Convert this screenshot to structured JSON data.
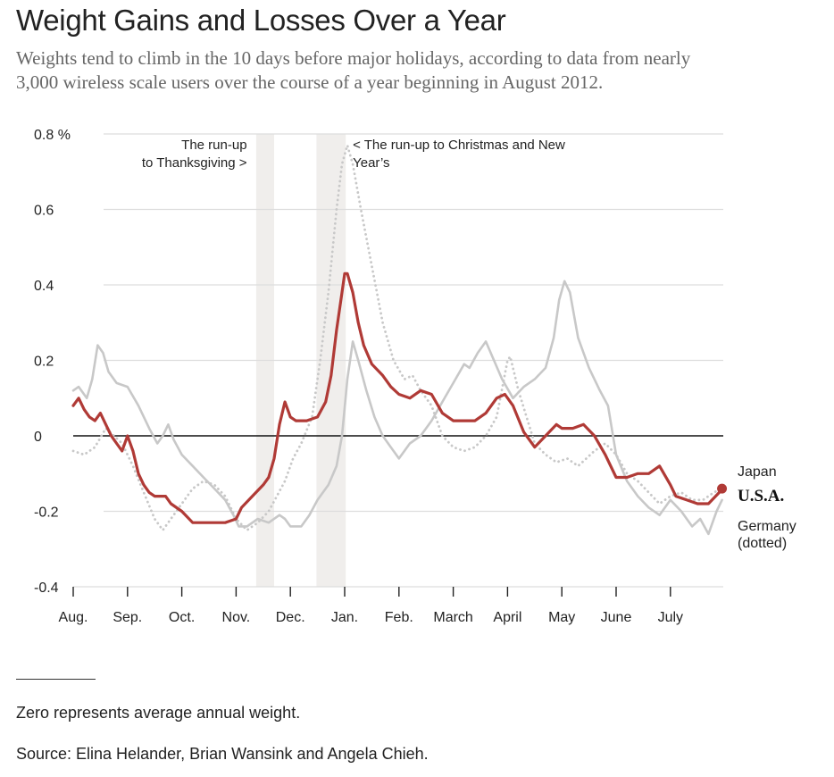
{
  "header": {
    "title": "Weight Gains and Losses Over a Year",
    "subtitle_line1": "Weights tend to climb in the 10 days before major holidays, according to data from nearly",
    "subtitle_line2": "3,000 wireless scale users over the course of a year beginning in August 2012."
  },
  "footer": {
    "note": "Zero represents average annual weight.",
    "source": "Source: Elina Helander, Brian Wansink and Angela Chieh."
  },
  "chart_data": {
    "type": "line",
    "title": "Weight Gains and Losses Over a Year",
    "xlabel": "",
    "ylabel": "",
    "ylim": [
      -0.4,
      0.8
    ],
    "xlim": [
      0,
      12
    ],
    "y_ticks": [
      {
        "value": 0.8,
        "label": "0.8 %"
      },
      {
        "value": 0.6,
        "label": "0.6"
      },
      {
        "value": 0.4,
        "label": "0.4"
      },
      {
        "value": 0.2,
        "label": "0.2"
      },
      {
        "value": 0.0,
        "label": "0"
      },
      {
        "value": -0.2,
        "label": "-0.2"
      },
      {
        "value": -0.4,
        "label": "-0.4"
      }
    ],
    "x_ticks": [
      {
        "value": 0,
        "label": "Aug."
      },
      {
        "value": 1,
        "label": "Sep."
      },
      {
        "value": 2,
        "label": "Oct."
      },
      {
        "value": 3,
        "label": "Nov."
      },
      {
        "value": 4,
        "label": "Dec."
      },
      {
        "value": 5,
        "label": "Jan."
      },
      {
        "value": 6,
        "label": "Feb."
      },
      {
        "value": 7,
        "label": "March"
      },
      {
        "value": 8,
        "label": "April"
      },
      {
        "value": 9,
        "label": "May"
      },
      {
        "value": 10,
        "label": "June"
      },
      {
        "value": 11,
        "label": "July"
      }
    ],
    "bands": [
      {
        "x0": 3.37,
        "x1": 3.7
      },
      {
        "x0": 4.48,
        "x1": 5.02
      }
    ],
    "annotations": [
      {
        "lines": [
          "The run-up",
          "to Thanksgiving >"
        ],
        "x": 3.2,
        "y": 0.76,
        "anchor": "end"
      },
      {
        "lines": [
          "< The run-up to Christmas and New",
          "Year’s"
        ],
        "x": 5.15,
        "y": 0.76,
        "anchor": "start"
      }
    ],
    "series": [
      {
        "name": "Japan",
        "color": "#c8c8c8",
        "style": "solid",
        "width": 2.6,
        "x": [
          0,
          0.1,
          0.25,
          0.35,
          0.45,
          0.55,
          0.65,
          0.8,
          1.0,
          1.2,
          1.4,
          1.55,
          1.65,
          1.75,
          1.85,
          2.0,
          2.2,
          2.4,
          2.6,
          2.8,
          2.95,
          3.05,
          3.2,
          3.4,
          3.6,
          3.8,
          3.9,
          4.0,
          4.2,
          4.35,
          4.5,
          4.7,
          4.85,
          4.95,
          5.05,
          5.15,
          5.25,
          5.4,
          5.55,
          5.7,
          5.85,
          6.0,
          6.2,
          6.4,
          6.6,
          6.8,
          7.0,
          7.2,
          7.3,
          7.45,
          7.6,
          7.75,
          7.9,
          8.1,
          8.3,
          8.5,
          8.7,
          8.85,
          8.95,
          9.05,
          9.15,
          9.3,
          9.5,
          9.7,
          9.85,
          10.0,
          10.2,
          10.4,
          10.6,
          10.8,
          11.0,
          11.2,
          11.4,
          11.55,
          11.7,
          11.85,
          11.95
        ],
        "y": [
          0.12,
          0.13,
          0.1,
          0.15,
          0.24,
          0.22,
          0.17,
          0.14,
          0.13,
          0.08,
          0.02,
          -0.02,
          0.0,
          0.03,
          -0.01,
          -0.05,
          -0.08,
          -0.11,
          -0.14,
          -0.17,
          -0.21,
          -0.24,
          -0.24,
          -0.22,
          -0.23,
          -0.21,
          -0.22,
          -0.24,
          -0.24,
          -0.21,
          -0.17,
          -0.13,
          -0.08,
          0.0,
          0.15,
          0.25,
          0.2,
          0.12,
          0.05,
          0.0,
          -0.03,
          -0.06,
          -0.02,
          0.0,
          0.04,
          0.09,
          0.14,
          0.19,
          0.18,
          0.22,
          0.25,
          0.2,
          0.15,
          0.1,
          0.13,
          0.15,
          0.18,
          0.26,
          0.36,
          0.41,
          0.38,
          0.26,
          0.18,
          0.12,
          0.08,
          -0.05,
          -0.12,
          -0.16,
          -0.19,
          -0.21,
          -0.17,
          -0.2,
          -0.24,
          -0.22,
          -0.26,
          -0.2,
          -0.17
        ]
      },
      {
        "name": "Germany (dotted)",
        "color": "#c8c8c8",
        "style": "dotted",
        "width": 2.8,
        "x": [
          0,
          0.2,
          0.4,
          0.6,
          0.75,
          0.9,
          1.1,
          1.3,
          1.5,
          1.65,
          1.8,
          2.0,
          2.2,
          2.4,
          2.6,
          2.8,
          3.0,
          3.2,
          3.4,
          3.6,
          3.75,
          3.9,
          4.05,
          4.2,
          4.4,
          4.55,
          4.7,
          4.85,
          4.95,
          5.05,
          5.15,
          5.3,
          5.5,
          5.7,
          5.9,
          6.1,
          6.25,
          6.4,
          6.6,
          6.8,
          7.0,
          7.2,
          7.4,
          7.6,
          7.8,
          8.0,
          8.05,
          8.1,
          8.2,
          8.35,
          8.5,
          8.7,
          8.9,
          9.1,
          9.3,
          9.45,
          9.6,
          9.8,
          10.0,
          10.2,
          10.4,
          10.6,
          10.8,
          11.0,
          11.2,
          11.4,
          11.6,
          11.8,
          11.95
        ],
        "y": [
          -0.04,
          -0.05,
          -0.03,
          0.02,
          0.0,
          -0.02,
          -0.08,
          -0.15,
          -0.22,
          -0.25,
          -0.22,
          -0.18,
          -0.14,
          -0.12,
          -0.13,
          -0.16,
          -0.22,
          -0.25,
          -0.23,
          -0.2,
          -0.16,
          -0.12,
          -0.06,
          -0.02,
          0.05,
          0.2,
          0.38,
          0.6,
          0.72,
          0.77,
          0.72,
          0.6,
          0.45,
          0.3,
          0.2,
          0.15,
          0.16,
          0.12,
          0.08,
          0.0,
          -0.03,
          -0.04,
          -0.03,
          0.0,
          0.05,
          0.2,
          0.21,
          0.18,
          0.12,
          0.05,
          -0.02,
          -0.05,
          -0.07,
          -0.06,
          -0.08,
          -0.06,
          -0.04,
          -0.02,
          -0.05,
          -0.1,
          -0.12,
          -0.15,
          -0.18,
          -0.16,
          -0.15,
          -0.17,
          -0.17,
          -0.15,
          -0.14
        ]
      },
      {
        "name": "U.S.A.",
        "color": "#b03a36",
        "style": "solid",
        "width": 3.2,
        "x": [
          0,
          0.1,
          0.2,
          0.3,
          0.4,
          0.5,
          0.6,
          0.7,
          0.8,
          0.9,
          1.0,
          1.1,
          1.2,
          1.3,
          1.4,
          1.5,
          1.6,
          1.7,
          1.8,
          2.0,
          2.2,
          2.4,
          2.6,
          2.8,
          3.0,
          3.1,
          3.3,
          3.5,
          3.6,
          3.7,
          3.8,
          3.9,
          4.0,
          4.1,
          4.3,
          4.5,
          4.65,
          4.75,
          4.85,
          4.95,
          5.0,
          5.05,
          5.15,
          5.25,
          5.35,
          5.5,
          5.7,
          5.85,
          6.0,
          6.2,
          6.4,
          6.6,
          6.8,
          7.0,
          7.2,
          7.4,
          7.6,
          7.8,
          7.95,
          8.1,
          8.3,
          8.5,
          8.7,
          8.9,
          9.0,
          9.2,
          9.4,
          9.6,
          9.8,
          10.0,
          10.2,
          10.4,
          10.6,
          10.8,
          11.0,
          11.1,
          11.3,
          11.5,
          11.7,
          11.9,
          11.95
        ],
        "y": [
          0.08,
          0.1,
          0.07,
          0.05,
          0.04,
          0.06,
          0.03,
          0.0,
          -0.02,
          -0.04,
          0.0,
          -0.04,
          -0.1,
          -0.13,
          -0.15,
          -0.16,
          -0.16,
          -0.16,
          -0.18,
          -0.2,
          -0.23,
          -0.23,
          -0.23,
          -0.23,
          -0.22,
          -0.19,
          -0.16,
          -0.13,
          -0.11,
          -0.06,
          0.03,
          0.09,
          0.05,
          0.04,
          0.04,
          0.05,
          0.09,
          0.16,
          0.28,
          0.38,
          0.43,
          0.43,
          0.38,
          0.3,
          0.24,
          0.19,
          0.16,
          0.13,
          0.11,
          0.1,
          0.12,
          0.11,
          0.06,
          0.04,
          0.04,
          0.04,
          0.06,
          0.1,
          0.11,
          0.08,
          0.01,
          -0.03,
          0.0,
          0.03,
          0.02,
          0.02,
          0.03,
          0.0,
          -0.05,
          -0.11,
          -0.11,
          -0.1,
          -0.1,
          -0.08,
          -0.13,
          -0.16,
          -0.17,
          -0.18,
          -0.18,
          -0.15,
          -0.14
        ]
      }
    ],
    "legend": [
      {
        "label": "Japan",
        "bold": false
      },
      {
        "label": "U.S.A.",
        "bold": true
      },
      {
        "label": "Germany",
        "bold": false
      },
      {
        "label": "(dotted)",
        "bold": false
      }
    ],
    "colors": {
      "usa": "#b03a36",
      "others": "#c8c8c8",
      "band": "#f0eeec",
      "grid": "#dddddd",
      "zero": "#111111"
    }
  }
}
